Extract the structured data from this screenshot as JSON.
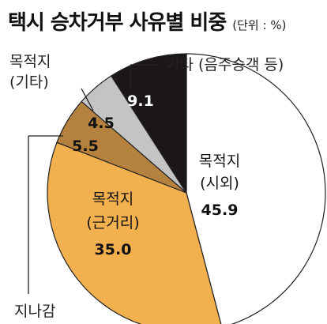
{
  "chart_data": {
    "type": "pie",
    "title": "택시 승차거부 사유별 비중",
    "unit": "(단위 : %)",
    "series": [
      {
        "slices": [
          {
            "label": "목적지 (시외)",
            "label_line1": "목적지",
            "label_line2": "(시외)",
            "value": 45.9,
            "value_text": "45.9",
            "color": "#ffffff"
          },
          {
            "label": "목적지 (근거리)",
            "label_line1": "목적지",
            "label_line2": "(근거리)",
            "value": 35.0,
            "value_text": "35.0",
            "color": "#f2b04e"
          },
          {
            "label": "지나감",
            "value": 5.5,
            "value_text": "5.5",
            "color": "#b5813f"
          },
          {
            "label": "목적지 (기타)",
            "label_line1": "목적지",
            "label_line2": "(기타)",
            "value": 4.5,
            "value_text": "4.5",
            "color": "#c4c4c4"
          },
          {
            "label": "기타 (음주승객 등)",
            "value": 9.1,
            "value_text": "9.1",
            "color": "#1b1716"
          }
        ]
      }
    ]
  }
}
